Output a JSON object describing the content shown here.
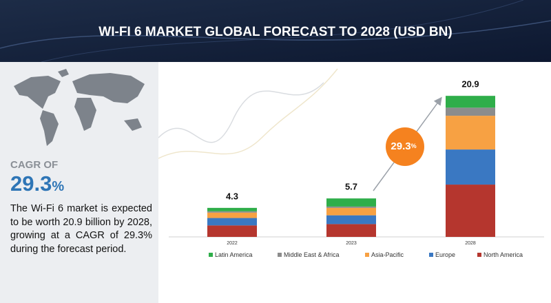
{
  "header": {
    "title": "WI-FI 6 MARKET GLOBAL FORECAST TO 2028 (USD BN)"
  },
  "sidebar": {
    "cagr_label": "CAGR OF",
    "cagr_value": "29.3",
    "cagr_unit": "%",
    "description": "The Wi-Fi 6 market is expected to be worth 20.9 billion by 2028, growing at a CAGR of 29.3% during the forecast period."
  },
  "chart_data": {
    "type": "stacked-bar",
    "categories": [
      "2022",
      "2023",
      "2028"
    ],
    "totals": [
      4.3,
      5.7,
      20.9
    ],
    "series": [
      {
        "name": "North America",
        "color": "#b5362e",
        "values": [
          1.7,
          1.9,
          7.75
        ]
      },
      {
        "name": "Europe",
        "color": "#3a78c2",
        "values": [
          1.1,
          1.3,
          5.2
        ]
      },
      {
        "name": "Asia-Pacific",
        "color": "#f7a143",
        "values": [
          0.8,
          1.1,
          5.0
        ]
      },
      {
        "name": "Middle East & Africa",
        "color": "#8c8c8c",
        "values": [
          0.2,
          0.2,
          1.2
        ]
      },
      {
        "name": "Latin America",
        "color": "#2fae4a",
        "values": [
          0.5,
          1.2,
          1.75
        ]
      }
    ],
    "legend_order": [
      4,
      3,
      2,
      1,
      0
    ]
  }
}
